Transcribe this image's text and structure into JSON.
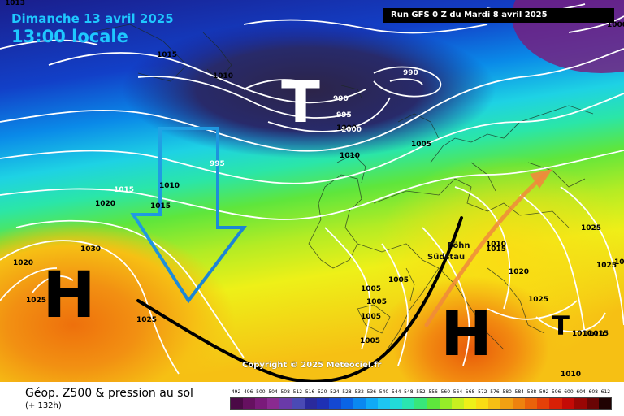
{
  "header": {
    "date": "Dimanche 13 avril 2025",
    "time": "13:00 locale",
    "run": "Run GFS 0 Z du Mardi 8 avril 2025"
  },
  "legend": {
    "title": "Géop. Z500 & pression au sol",
    "subtitle": "(+ 132h)",
    "scale": [
      "492",
      "496",
      "500",
      "504",
      "508",
      "512",
      "516",
      "520",
      "524",
      "528",
      "532",
      "536",
      "540",
      "544",
      "548",
      "552",
      "556",
      "560",
      "564",
      "568",
      "572",
      "576",
      "580",
      "584",
      "588",
      "592",
      "596",
      "600",
      "604",
      "608",
      "612"
    ],
    "colors": [
      "#4b0a46",
      "#661060",
      "#7a1a7a",
      "#8a2a90",
      "#6a3aa8",
      "#4a4ab4",
      "#2a2a9c",
      "#1e30b4",
      "#1448d2",
      "#0a64e6",
      "#0a88f0",
      "#10aaf6",
      "#1ec6f2",
      "#22dcd8",
      "#2ae6b0",
      "#38e67a",
      "#5ee63c",
      "#96ec28",
      "#c8f020",
      "#eef018",
      "#fadc14",
      "#f6c014",
      "#f2a012",
      "#ee820e",
      "#ea620a",
      "#e44008",
      "#d82006",
      "#c40a06",
      "#9a0604",
      "#6a0404",
      "#200202"
    ]
  },
  "map": {
    "copyright": "Copyright © 2025 Meteociel.fr",
    "low_symbols": [
      "T",
      "T"
    ],
    "high_symbols": [
      "H",
      "H"
    ],
    "regions": [
      "Föhn",
      "Südstau"
    ],
    "isobar_labels": [
      "1015",
      "1010",
      "1005",
      "1015",
      "1010",
      "1000",
      "990",
      "990",
      "995",
      "1000",
      "995",
      "1015",
      "1020",
      "1010",
      "1020",
      "1030",
      "1025",
      "1025",
      "1005",
      "1005",
      "1005",
      "1005",
      "1005",
      "1010",
      "1015",
      "1020",
      "1025",
      "1025",
      "1025",
      "1025",
      "1010",
      "1010",
      "1015",
      "1010",
      "1000",
      "1013"
    ]
  }
}
